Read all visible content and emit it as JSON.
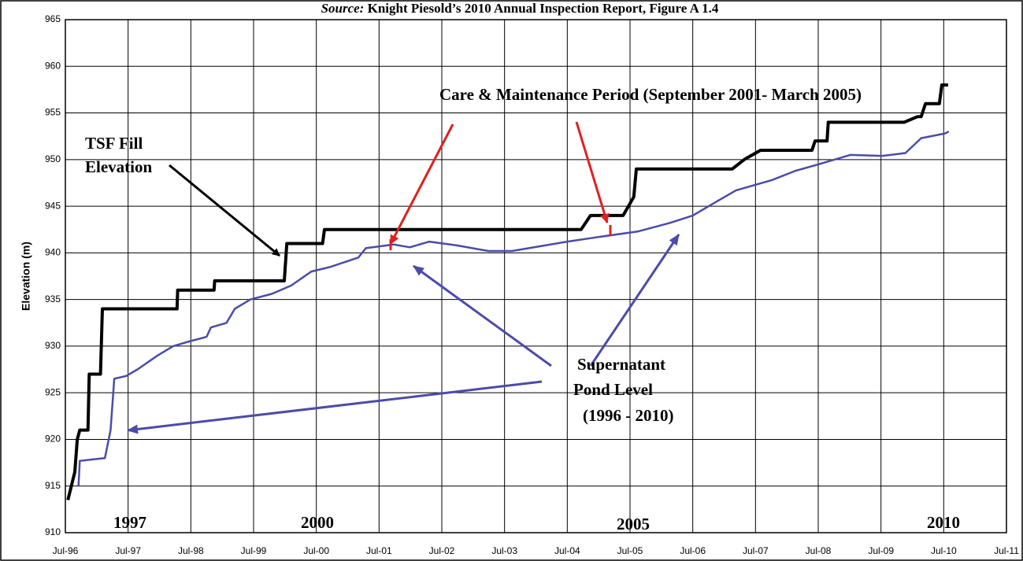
{
  "chart_data": {
    "type": "line",
    "title_source": "Source:",
    "title": "Knight Piesold’s 2010 Annual Inspection Report, Figure A 1.4",
    "ylabel": "Elevation (m)",
    "grid": true,
    "xlim": [
      1996.5,
      2011.5
    ],
    "xticks": [
      {
        "value": 1996.5,
        "label": "Jul-96"
      },
      {
        "value": 1997.5,
        "label": "Jul-97"
      },
      {
        "value": 1998.5,
        "label": "Jul-98"
      },
      {
        "value": 1999.5,
        "label": "Jul-99"
      },
      {
        "value": 2000.5,
        "label": "Jul-00"
      },
      {
        "value": 2001.5,
        "label": "Jul-01"
      },
      {
        "value": 2002.5,
        "label": "Jul-02"
      },
      {
        "value": 2003.5,
        "label": "Jul-03"
      },
      {
        "value": 2004.5,
        "label": "Jul-04"
      },
      {
        "value": 2005.5,
        "label": "Jul-05"
      },
      {
        "value": 2006.5,
        "label": "Jul-06"
      },
      {
        "value": 2007.5,
        "label": "Jul-07"
      },
      {
        "value": 2008.5,
        "label": "Jul-08"
      },
      {
        "value": 2009.5,
        "label": "Jul-09"
      },
      {
        "value": 2010.5,
        "label": "Jul-10"
      },
      {
        "value": 2011.5,
        "label": "Jul-11"
      }
    ],
    "ylim": [
      910,
      965
    ],
    "yticks": [
      910,
      915,
      920,
      925,
      930,
      935,
      940,
      945,
      950,
      955,
      960,
      965
    ],
    "series": [
      {
        "color": "#000000",
        "x": [
          1996.54,
          1996.65,
          1996.69,
          1996.73,
          1996.86,
          1996.88,
          1997.06,
          1997.09,
          1998.28,
          1998.29,
          1998.87,
          1998.88,
          1999.99,
          2000.03,
          2000.6,
          2000.63,
          2004.72,
          2004.87,
          2005.39,
          2005.56,
          2005.6,
          2007.13,
          2007.32,
          2007.58,
          2008.4,
          2008.45,
          2008.64,
          2008.66,
          2009.87,
          2010.08,
          2010.14,
          2010.21,
          2010.43,
          2010.47,
          2010.57
        ],
        "values": [
          913.5,
          916.5,
          920,
          921,
          921,
          927,
          927,
          934,
          934,
          936,
          936,
          937,
          937,
          941,
          941,
          942.5,
          942.5,
          944,
          944,
          946,
          949,
          949,
          950,
          951,
          951,
          952,
          952,
          954,
          954,
          954.6,
          954.6,
          956,
          956,
          958,
          958
        ]
      },
      {
        "color": "#4b4bab",
        "x": [
          1996.71,
          1996.73,
          1997.13,
          1997.22,
          1997.28,
          1997.47,
          1997.65,
          1997.97,
          1998.22,
          1998.47,
          1998.75,
          1998.82,
          1999.07,
          1999.2,
          1999.45,
          1999.79,
          2000.1,
          2000.42,
          2000.73,
          2001.17,
          2001.29,
          2001.73,
          2001.99,
          2002.3,
          2002.74,
          2003.24,
          2003.62,
          2004.5,
          2005.0,
          2005.63,
          2006.13,
          2006.5,
          2006.88,
          2007.19,
          2007.76,
          2008.14,
          2008.51,
          2009.01,
          2009.52,
          2009.89,
          2010.14,
          2010.52,
          2010.58
        ],
        "values": [
          915,
          917.7,
          918,
          921,
          926.5,
          926.8,
          927.5,
          929,
          930,
          930.5,
          931,
          932,
          932.5,
          934,
          935,
          935.6,
          936.5,
          938,
          938.5,
          939.5,
          940.5,
          940.9,
          940.6,
          941.2,
          940.8,
          940.2,
          940.2,
          941.2,
          941.7,
          942.3,
          943.2,
          944,
          945.5,
          946.7,
          947.8,
          948.8,
          949.5,
          950.5,
          950.4,
          950.7,
          952.3,
          952.8,
          953
        ]
      }
    ],
    "annotations": [
      "Care & Maintenance  Period (September 2001- March 2005)",
      "TSF Fill",
      "Elevation",
      "Supernatant",
      "Pond Level",
      "(1996 - 2010)",
      "1997",
      "2000",
      "2005",
      "2010"
    ]
  }
}
